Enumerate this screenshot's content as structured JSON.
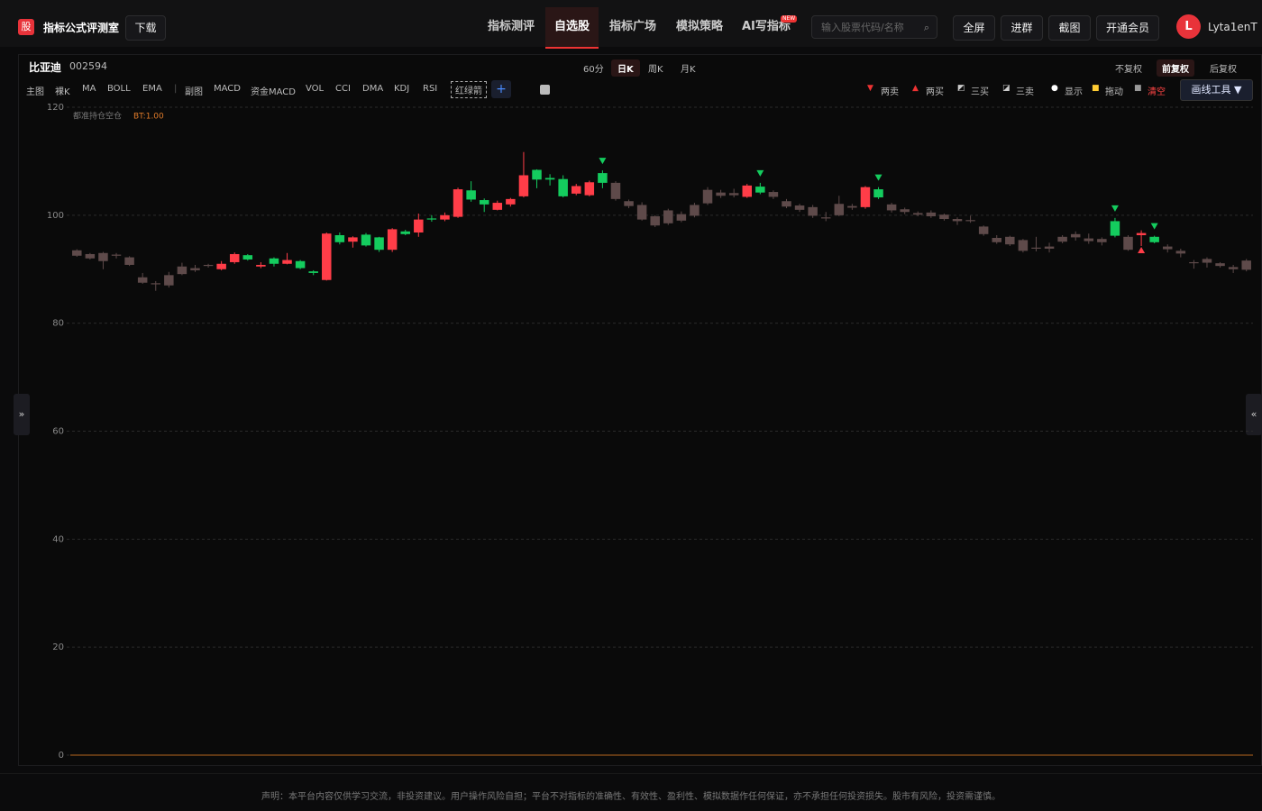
{
  "header": {
    "logo": "股",
    "app_title": "指标公式评测室",
    "download": "下载",
    "nav": [
      "指标测评",
      "自选股",
      "指标广场",
      "模拟策略",
      "AI写指标"
    ],
    "nav_badge": "NEW",
    "search_placeholder": "输入股票代码/名称",
    "buttons": [
      "全屏",
      "进群",
      "截图",
      "开通会员"
    ],
    "avatar": "L",
    "username": "Lyta1enT"
  },
  "stock": {
    "name": "比亚迪",
    "code": "002594",
    "periods": [
      "60分",
      "日K",
      "周K",
      "月K"
    ],
    "adjust": [
      "不复权",
      "前复权",
      "后复权"
    ]
  },
  "toolbar": {
    "main": [
      "主图",
      "裸K",
      "MA",
      "BOLL",
      "EMA"
    ],
    "sub": [
      "副图",
      "MACD",
      "资金MACD",
      "VOL",
      "CCI",
      "DMA",
      "KDJ",
      "RSI",
      "红绿箭"
    ],
    "add": "+",
    "actions": [
      "两卖",
      "两买",
      "三买",
      "三卖",
      "显示",
      "拖动",
      "清空"
    ],
    "draw_tools": "画线工具 ▼"
  },
  "chart_data": {
    "type": "candlestick",
    "legend": "都准持仓空仓",
    "legend_value": "BT:1.00",
    "ylim": [
      0,
      120
    ],
    "yticks": [
      0,
      20,
      40,
      60,
      80,
      100,
      120
    ],
    "grid": true,
    "up_color": "#ff3d48",
    "down_color": "#14cc5e",
    "dim_color": "#5e4a4a",
    "open": [
      93.5,
      92.8,
      93.0,
      92.5,
      92.2,
      88.5,
      87.4,
      88.9,
      89.1,
      89.8,
      90.6,
      90.0,
      91.3,
      92.6,
      90.5,
      92.0,
      91.0,
      91.5,
      89.6,
      88.0,
      96.3,
      95.1,
      96.4,
      95.9,
      93.6,
      97.0,
      96.8,
      99.4,
      99.2,
      99.7,
      104.6,
      102.8,
      101.0,
      102.0,
      103.5,
      108.4,
      106.9,
      106.7,
      104.0,
      103.7,
      107.8,
      106.0,
      102.6,
      101.9,
      99.8,
      98.5,
      99.0,
      99.9,
      102.2,
      103.6,
      103.7,
      103.4,
      105.3,
      104.3,
      102.6,
      101.8,
      101.5,
      99.6,
      100.0,
      101.7,
      101.5,
      104.8,
      102.0,
      101.1,
      100.4,
      100.5,
      100.1,
      99.3,
      99.1,
      97.9,
      95.8,
      96.0,
      95.4,
      94.0,
      93.8,
      95.1,
      95.9,
      95.7,
      95.6,
      98.9,
      96.0,
      96.3,
      96.0,
      94.2,
      93.4,
      91.3,
      91.9,
      91.1,
      90.4,
      91.6
    ],
    "high": [
      93.7,
      93.0,
      93.2,
      93.0,
      92.4,
      89.3,
      87.8,
      89.5,
      91.2,
      90.8,
      91.0,
      91.5,
      93.1,
      92.8,
      91.3,
      92.2,
      93.0,
      91.7,
      89.8,
      96.8,
      96.8,
      96.1,
      96.7,
      96.0,
      97.6,
      97.3,
      100.3,
      100.0,
      100.5,
      105.1,
      106.3,
      103.1,
      102.7,
      103.2,
      111.7,
      108.5,
      107.6,
      107.4,
      105.8,
      106.4,
      108.3,
      106.3,
      102.9,
      102.4,
      100.0,
      101.2,
      100.7,
      102.3,
      105.2,
      104.7,
      104.9,
      105.8,
      106.0,
      104.6,
      103.0,
      102.1,
      101.9,
      100.6,
      103.6,
      102.1,
      105.4,
      105.2,
      102.3,
      101.4,
      100.7,
      100.9,
      100.3,
      99.6,
      99.9,
      98.1,
      96.3,
      96.2,
      95.6,
      96.0,
      94.9,
      96.3,
      97.0,
      96.6,
      95.9,
      99.5,
      96.3,
      97.2,
      96.2,
      94.6,
      93.8,
      91.7,
      92.2,
      91.3,
      90.8,
      91.9
    ],
    "low": [
      92.3,
      91.8,
      90.0,
      92.0,
      90.6,
      87.3,
      86.0,
      86.6,
      88.9,
      89.5,
      90.3,
      89.8,
      91.0,
      91.6,
      90.2,
      90.5,
      90.9,
      90.0,
      88.9,
      87.9,
      94.6,
      94.0,
      94.2,
      93.2,
      93.2,
      96.3,
      96.0,
      98.8,
      98.9,
      99.5,
      102.5,
      100.6,
      100.9,
      101.6,
      103.3,
      105.0,
      105.5,
      103.3,
      103.7,
      103.5,
      105.0,
      102.7,
      101.3,
      99.0,
      97.8,
      98.2,
      98.7,
      99.6,
      101.9,
      103.2,
      103.3,
      103.2,
      103.9,
      103.0,
      101.3,
      100.6,
      99.5,
      98.9,
      99.8,
      101.0,
      101.2,
      103.0,
      100.5,
      100.2,
      99.8,
      99.5,
      99.0,
      98.2,
      98.6,
      96.2,
      94.7,
      94.3,
      93.1,
      93.3,
      93.1,
      94.8,
      95.3,
      94.7,
      94.4,
      95.9,
      93.4,
      94.3,
      94.8,
      93.1,
      92.2,
      90.1,
      90.3,
      90.3,
      89.3,
      89.6
    ],
    "close": [
      92.5,
      92.0,
      91.5,
      92.7,
      90.8,
      87.5,
      87.2,
      87.0,
      90.5,
      90.2,
      90.8,
      91.0,
      92.8,
      91.8,
      90.8,
      91.0,
      91.7,
      90.2,
      89.3,
      96.6,
      95.0,
      95.9,
      94.4,
      93.6,
      97.4,
      96.5,
      99.2,
      99.2,
      100.0,
      104.8,
      102.9,
      102.0,
      102.3,
      103.0,
      107.4,
      106.6,
      106.6,
      103.5,
      105.4,
      106.1,
      106.0,
      103.0,
      101.7,
      99.2,
      98.1,
      100.9,
      100.2,
      101.9,
      104.7,
      104.2,
      104.1,
      105.5,
      104.2,
      103.4,
      101.6,
      101.0,
      99.9,
      99.4,
      102.1,
      101.4,
      105.2,
      103.3,
      100.9,
      100.6,
      100.1,
      99.8,
      99.3,
      98.9,
      98.9,
      96.5,
      95.0,
      94.6,
      93.4,
      93.8,
      94.2,
      96.0,
      96.5,
      95.2,
      95.0,
      96.2,
      93.6,
      96.7,
      95.0,
      93.7,
      92.9,
      91.1,
      91.2,
      90.6,
      90.0,
      89.9
    ],
    "highlighted": [
      11,
      12,
      13,
      14,
      15,
      16,
      17,
      18,
      19,
      20,
      21,
      22,
      23,
      24,
      25,
      26,
      27,
      28,
      29,
      30,
      31,
      32,
      33,
      34,
      35,
      36,
      37,
      38,
      39,
      40,
      51,
      52,
      60,
      61,
      79,
      81,
      82
    ],
    "sell_signals": [
      40,
      52,
      61,
      79,
      82
    ],
    "buy_signals": [
      81
    ]
  },
  "footer": "声明：本平台内容仅供学习交流，非投资建议。用户操作风险自担；平台不对指标的准确性、有效性、盈利性、模拟数据作任何保证，亦不承担任何投资损失。股市有风险，投资需谨慎。"
}
